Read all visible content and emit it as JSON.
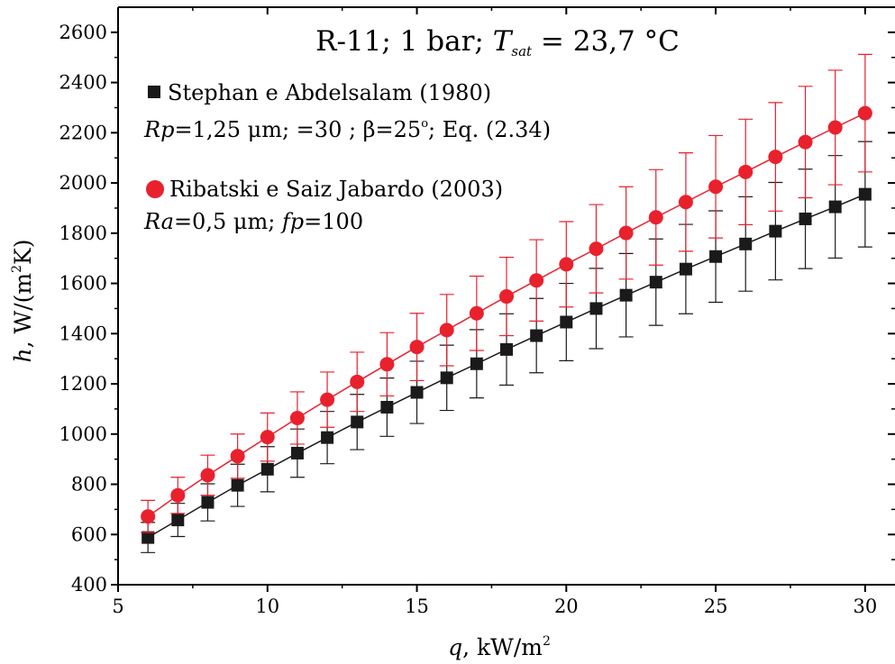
{
  "chart_data": {
    "type": "scatter",
    "title": {
      "prefix": "R-11; 1 bar; ",
      "var": "T",
      "var_sub": "sat",
      "suffix": " = 23,7 °C"
    },
    "xlabel": {
      "var": "q",
      "rest": ", kW/m",
      "sup": "2"
    },
    "ylabel": {
      "var": "h",
      "rest1": ", W/(m",
      "sup": "2",
      "rest2": "K)"
    },
    "xlim": [
      5,
      31
    ],
    "ylim": [
      400,
      2700
    ],
    "xticks": [
      5,
      10,
      15,
      20,
      25,
      30
    ],
    "yticks": [
      400,
      600,
      800,
      1000,
      1200,
      1400,
      1600,
      1800,
      2000,
      2200,
      2400,
      2600
    ],
    "grid": false,
    "legend_position": "top-left",
    "x": [
      6,
      7,
      8,
      9,
      10,
      11,
      12,
      13,
      14,
      15,
      16,
      17,
      18,
      19,
      20,
      21,
      22,
      23,
      24,
      25,
      26,
      27,
      28,
      29,
      30
    ],
    "series": [
      {
        "name": "Stephan e Abdelsalam (1980)",
        "detail": {
          "var1": "Rp",
          "part1": "=1,25 μm; =30 ; β=25",
          "sup": "o",
          "part2": "; Eq. (2.34)"
        },
        "marker": "square",
        "color": "#1a1a1a",
        "values": [
          588,
          658,
          728,
          796,
          860,
          924,
          986,
          1048,
          1107,
          1166,
          1224,
          1280,
          1337,
          1392,
          1446,
          1500,
          1553,
          1605,
          1657,
          1707,
          1757,
          1808,
          1857,
          1905,
          1955
        ],
        "errors": [
          60,
          66,
          74,
          84,
          90,
          96,
          104,
          110,
          116,
          124,
          130,
          136,
          142,
          148,
          154,
          160,
          166,
          172,
          178,
          182,
          188,
          194,
          198,
          204,
          210
        ]
      },
      {
        "name": "Ribatski e Saiz Jabardo (2003)",
        "detail": {
          "var1": "Ra",
          "part1": "=0,5 μm; ",
          "var2": "fp",
          "part2": "=100"
        },
        "marker": "circle",
        "color": "#e8212d",
        "values": [
          672,
          756,
          836,
          912,
          988,
          1064,
          1137,
          1208,
          1278,
          1347,
          1414,
          1481,
          1548,
          1612,
          1676,
          1738,
          1801,
          1863,
          1924,
          1985,
          2044,
          2104,
          2163,
          2221,
          2278
        ],
        "errors": [
          64,
          72,
          80,
          88,
          96,
          104,
          110,
          118,
          126,
          134,
          142,
          148,
          156,
          162,
          170,
          176,
          184,
          190,
          196,
          204,
          210,
          216,
          222,
          228,
          234
        ]
      }
    ]
  }
}
